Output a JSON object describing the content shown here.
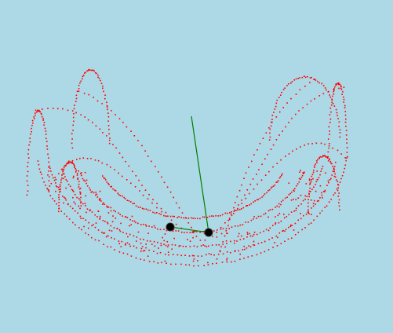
{
  "scene": {
    "background": "#ADD8E6",
    "trail_color": "#FF0000",
    "rod_color": "#008000",
    "bob_color": "#000000",
    "bob_outline": "#333333",
    "trail_point_count": 1100
  }
}
